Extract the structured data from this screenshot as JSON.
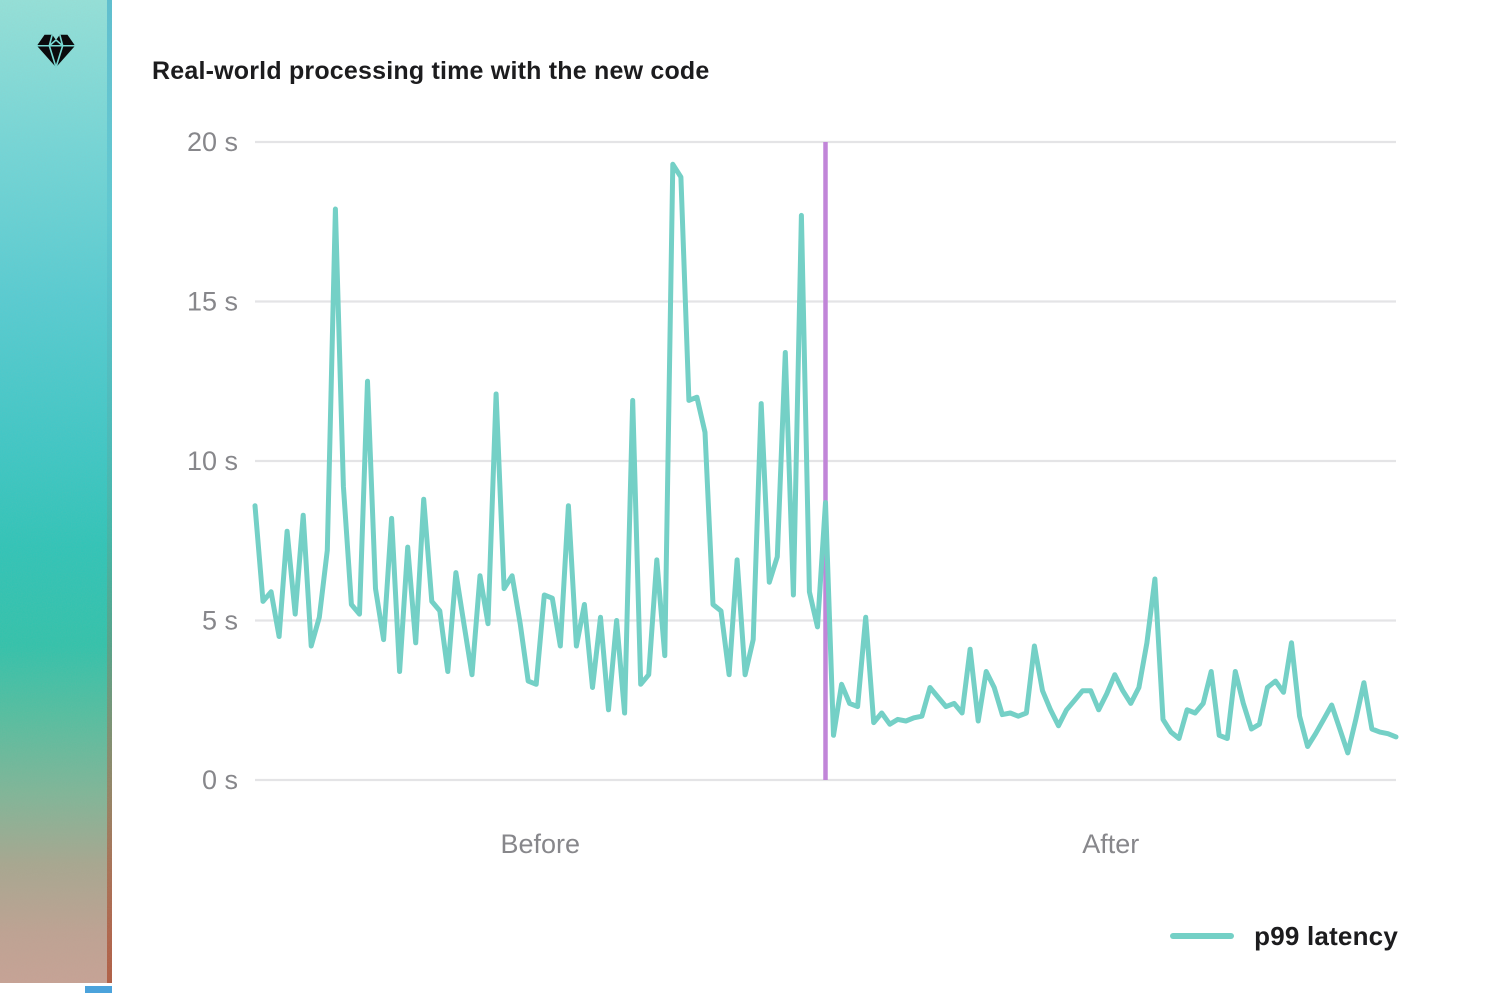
{
  "header": {
    "title": "Real-world processing time with the new code"
  },
  "sidebar": {
    "brand_icon": "diamond-gem-icon",
    "gradient_top_color": "#93e2da",
    "gradient_mid_color": "#2dc5b8",
    "gradient_bottom_color": "#c9a295"
  },
  "legend": {
    "entries": [
      {
        "label": "p99 latency",
        "color": "#74d0c6"
      }
    ]
  },
  "chart_data": {
    "type": "line",
    "title": "Real-world processing time with the new code",
    "xlabel": "",
    "ylabel": "",
    "ylim": [
      0,
      20
    ],
    "grid": "horizontal",
    "grid_color": "#e4e4e6",
    "axis_text_color": "#87878b",
    "yticks": [
      {
        "value": 0,
        "label": "0 s"
      },
      {
        "value": 5,
        "label": "5 s"
      },
      {
        "value": 10,
        "label": "10 s"
      },
      {
        "value": 15,
        "label": "15 s"
      },
      {
        "value": 20,
        "label": "20 s"
      }
    ],
    "x_section_labels": [
      {
        "label": "Before"
      },
      {
        "label": "After"
      }
    ],
    "divider": {
      "type": "vertical-line",
      "color": "#c185d8",
      "at_index": 71
    },
    "legend_position": "bottom-right",
    "series": [
      {
        "name": "p99 latency",
        "color": "#74d0c6",
        "unit": "s",
        "values": [
          8.6,
          5.6,
          5.9,
          4.5,
          7.8,
          5.2,
          8.3,
          4.2,
          5.1,
          7.2,
          17.9,
          9.2,
          5.5,
          5.2,
          12.5,
          6.0,
          4.4,
          8.2,
          3.4,
          7.3,
          4.3,
          8.8,
          5.6,
          5.3,
          3.4,
          6.5,
          4.9,
          3.3,
          6.4,
          4.9,
          12.1,
          6.0,
          6.4,
          4.9,
          3.1,
          3.0,
          5.8,
          5.7,
          4.2,
          8.6,
          4.2,
          5.5,
          2.9,
          5.1,
          2.2,
          5.0,
          2.1,
          11.9,
          3.0,
          3.3,
          6.9,
          3.9,
          19.3,
          18.9,
          11.9,
          12.0,
          10.9,
          5.5,
          5.3,
          3.3,
          6.9,
          3.3,
          4.4,
          11.8,
          6.2,
          7.0,
          13.4,
          5.8,
          17.7,
          5.9,
          4.8,
          8.7,
          1.4,
          3.0,
          2.4,
          2.3,
          5.1,
          1.8,
          2.1,
          1.75,
          1.9,
          1.85,
          1.95,
          2.0,
          2.9,
          2.6,
          2.3,
          2.4,
          2.1,
          4.1,
          1.85,
          3.4,
          2.9,
          2.05,
          2.1,
          2.0,
          2.1,
          4.2,
          2.8,
          2.2,
          1.7,
          2.2,
          2.5,
          2.8,
          2.8,
          2.2,
          2.7,
          3.3,
          2.8,
          2.4,
          2.9,
          4.3,
          6.3,
          1.9,
          1.5,
          1.3,
          2.2,
          2.1,
          2.4,
          3.4,
          1.4,
          1.3,
          3.4,
          2.4,
          1.6,
          1.75,
          2.9,
          3.1,
          2.75,
          4.3,
          2.0,
          1.05,
          1.45,
          1.9,
          2.35,
          1.6,
          0.85,
          1.9,
          3.05,
          1.6,
          1.5,
          1.45,
          1.35
        ]
      }
    ]
  }
}
